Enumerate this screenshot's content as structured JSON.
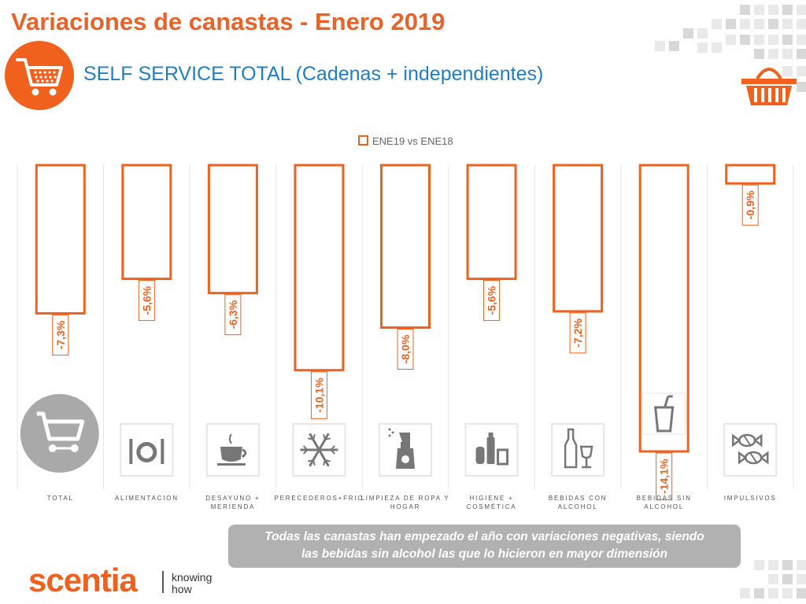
{
  "header": {
    "title": "Variaciones de canastas - Enero 2019",
    "subtitle": "SELF SERVICE TOTAL (Cadenas + independientes)"
  },
  "colors": {
    "accent": "#f0611e",
    "title": "#e8622a",
    "subtitle": "#1e7fc4",
    "icon_gray": "#777777"
  },
  "chart_data": {
    "type": "bar",
    "legend": [
      "ENE19 vs ENE18"
    ],
    "legend_position": "top",
    "categories": [
      {
        "label": [
          "TOTAL"
        ],
        "icon": "shopping-cart-icon"
      },
      {
        "label": [
          "ALIMENTACION"
        ],
        "icon": "plate-cutlery-icon"
      },
      {
        "label": [
          "DESAYUNO +",
          "MERIENDA"
        ],
        "icon": "coffee-cup-icon"
      },
      {
        "label": [
          "PERECEDEROS+FRIO"
        ],
        "icon": "snowflake-icon"
      },
      {
        "label": [
          "LIMPIEZA DE ROPA Y",
          "HOGAR"
        ],
        "icon": "spray-bottle-icon"
      },
      {
        "label": [
          "HIGIENE +",
          "COSMÉTICA"
        ],
        "icon": "toiletries-icon"
      },
      {
        "label": [
          "BEBIDAS CON",
          "ALCOHOL"
        ],
        "icon": "wine-bottle-icon"
      },
      {
        "label": [
          "BEBIDAS SIN",
          "ALCOHOL"
        ],
        "icon": "soda-cup-icon"
      },
      {
        "label": [
          "IMPULSIVOS"
        ],
        "icon": "candy-icon"
      }
    ],
    "series": [
      {
        "name": "ENE19 vs ENE18",
        "values": [
          -7.3,
          -5.6,
          -6.3,
          -10.1,
          -8.0,
          -5.6,
          -7.2,
          -14.1,
          -0.9
        ]
      }
    ],
    "data_labels": [
      "-7,3%",
      "-5,6%",
      "-6,3%",
      "-10,1%",
      "-8,0%",
      "-5,6%",
      "-7,2%",
      "-14,1%",
      "-0,9%"
    ],
    "ylim": [
      -14.1,
      0
    ],
    "grid": false
  },
  "footnote": {
    "line1": "Todas las canastas han empezado el año con variaciones negativas, siendo",
    "line2": "las bebidas sin alcohol las que lo hicieron en mayor dimensión"
  },
  "brand": {
    "name": "scentia",
    "tagline1": "knowing",
    "tagline2": "how"
  }
}
